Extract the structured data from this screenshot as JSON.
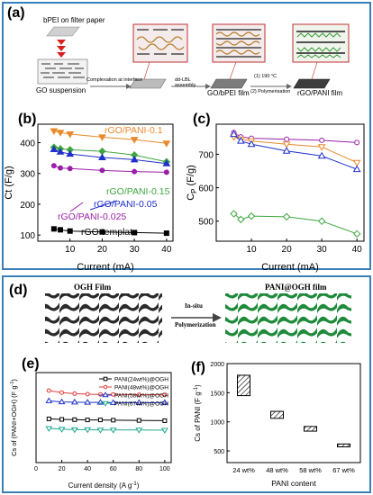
{
  "panel_labels": {
    "a": "(a)",
    "b": "(b)",
    "c": "(c)",
    "d": "(d)",
    "e": "(e)",
    "f": "(f)"
  },
  "schematic_a": {
    "bpei_label": "bPEI on filter paper",
    "go_label": "GO suspension",
    "step1": "Complexation at interface",
    "step2": "dd-LBL assembly",
    "step3a": "(1) 190 °C",
    "step3b": "(2) Polymerisation",
    "film1": "GO/bPEI film",
    "film2": "rGO/PANI film"
  },
  "schematic_d": {
    "left_title": "OGH Film",
    "arrow_line1": "In-situ",
    "arrow_line2": "Polymerization",
    "right_title": "PANI@OGH film"
  },
  "colors": {
    "border": "#3a7fb8",
    "orange": "#e8892b",
    "green": "#3fa63f",
    "blue": "#2030c8",
    "purple": "#9a1fa8",
    "black": "#000000",
    "red": "#e23a3a",
    "teal": "#20a890"
  },
  "chart_data": [
    {
      "type": "line",
      "panel": "b",
      "xlabel": "Current (mA)",
      "ylabel": "Ct (F/g)",
      "xlim": [
        0,
        42
      ],
      "ylim": [
        80,
        460
      ],
      "x_ticks": [
        10,
        20,
        30,
        40
      ],
      "y_ticks": [
        100,
        200,
        300,
        400
      ],
      "x": [
        5,
        7,
        10,
        20,
        30,
        40
      ],
      "series": [
        {
          "name": "rGO/PANI-0.1",
          "color": "#e8892b",
          "marker": "tri-down",
          "values": [
            438,
            433,
            428,
            418,
            410,
            398
          ]
        },
        {
          "name": "rGO/PANI-0.15",
          "color": "#3fa63f",
          "marker": "diamond",
          "values": [
            385,
            380,
            377,
            372,
            360,
            338
          ]
        },
        {
          "name": "rGO/PANI-0.05",
          "color": "#2030c8",
          "marker": "tri-up",
          "values": [
            378,
            370,
            363,
            352,
            345,
            332
          ]
        },
        {
          "name": "rGO/PANI-0.025",
          "color": "#9a1fa8",
          "marker": "circle",
          "values": [
            325,
            318,
            316,
            310,
            306,
            304
          ]
        },
        {
          "name": "rGO template",
          "color": "#000000",
          "marker": "square",
          "values": [
            120,
            117,
            113,
            110,
            108,
            106
          ]
        }
      ]
    },
    {
      "type": "line",
      "panel": "c",
      "xlabel": "Current (mA)",
      "ylabel": "C",
      "ylabel_sub": "P",
      "ylabel_unit": " (F/g)",
      "xlim": [
        0,
        42
      ],
      "ylim": [
        440,
        790
      ],
      "x_ticks": [
        10,
        20,
        30,
        40
      ],
      "y_ticks": [
        500,
        600,
        700
      ],
      "x": [
        5,
        7,
        10,
        20,
        30,
        40
      ],
      "series": [
        {
          "name": "",
          "color": "#9a1fa8",
          "marker": "circle",
          "values": [
            765,
            752,
            748,
            745,
            742,
            735
          ]
        },
        {
          "name": "",
          "color": "#e8892b",
          "marker": "tri-down",
          "values": [
            752,
            745,
            740,
            730,
            722,
            675
          ]
        },
        {
          "name": "",
          "color": "#2030c8",
          "marker": "tri-up",
          "values": [
            760,
            740,
            730,
            710,
            695,
            655
          ]
        },
        {
          "name": "",
          "color": "#3fa63f",
          "marker": "diamond",
          "values": [
            522,
            505,
            515,
            513,
            500,
            462
          ]
        }
      ]
    },
    {
      "type": "line",
      "panel": "e",
      "xlabel": "Current density (A g",
      "xlabel_sup": "-1",
      "xlabel_end": ")",
      "ylabel": "Cs of (PANI+OGH) (F g",
      "ylabel_sup": "-1",
      "ylabel_end": ")",
      "xlim": [
        0,
        105
      ],
      "ylim": [
        250,
        600
      ],
      "x_ticks": [
        0,
        20,
        40,
        60,
        80,
        100
      ],
      "y_ticks": [],
      "x": [
        10,
        20,
        30,
        40,
        50,
        60,
        80,
        100
      ],
      "series": [
        {
          "name": "PANI(24wt%)@OGH",
          "color": "#000000",
          "marker": "square",
          "values": [
            420,
            418,
            417,
            416,
            416,
            415,
            414,
            413
          ]
        },
        {
          "name": "PANI(48wt%)@OGH",
          "color": "#e23a3a",
          "marker": "circle",
          "values": [
            530,
            522,
            518,
            516,
            515,
            515,
            514,
            514
          ]
        },
        {
          "name": "PANI(58wt%)@OGH",
          "color": "#2030c8",
          "marker": "tri-up",
          "values": [
            490,
            486,
            485,
            484,
            484,
            483,
            483,
            483
          ]
        },
        {
          "name": "PANI(67wt%)@OGH",
          "color": "#20a890",
          "marker": "tri-down",
          "values": [
            383,
            380,
            378,
            378,
            377,
            377,
            377,
            376
          ]
        }
      ]
    },
    {
      "type": "bar",
      "panel": "f",
      "xlabel": "PANI content",
      "ylabel": "Cs of PANI (F g",
      "ylabel_sup": "-1",
      "ylabel_end": ")",
      "ylim": [
        300,
        2000
      ],
      "y_ticks": [
        500,
        1000,
        1500,
        2000
      ],
      "categories": [
        "24 wt%",
        "48 wt%",
        "58 wt%",
        "67 wt%"
      ],
      "ranges": [
        [
          1450,
          1800
        ],
        [
          1060,
          1180
        ],
        [
          840,
          920
        ],
        [
          570,
          620
        ]
      ]
    }
  ]
}
